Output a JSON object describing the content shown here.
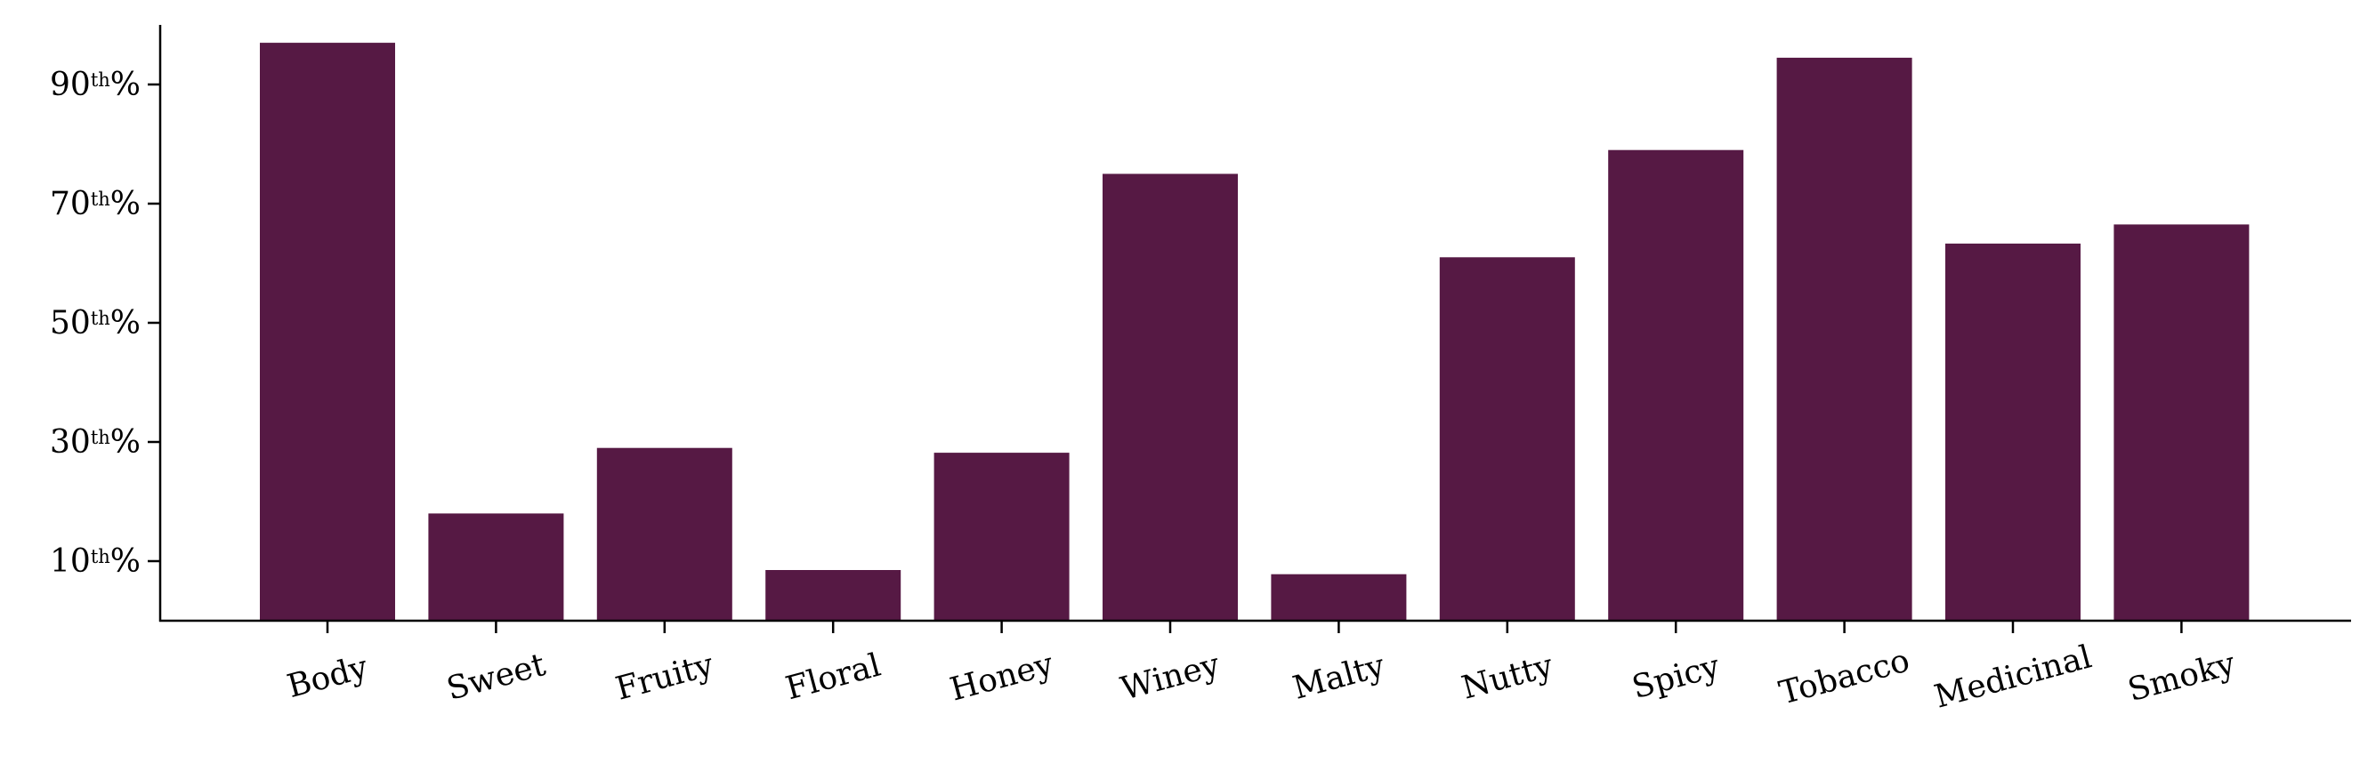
{
  "chart_data": {
    "type": "bar",
    "title": "",
    "xlabel": "",
    "ylabel": "",
    "categories": [
      "Body",
      "Sweet",
      "Fruity",
      "Floral",
      "Honey",
      "Winey",
      "Malty",
      "Nutty",
      "Spicy",
      "Tobacco",
      "Medicinal",
      "Smoky"
    ],
    "values": [
      97,
      18,
      29,
      8.5,
      28.2,
      75,
      7.8,
      61,
      79,
      94.5,
      63.3,
      66.5
    ],
    "ylim": [
      0,
      100
    ],
    "yticks": [
      {
        "value": 10,
        "num": "10",
        "sup": "th",
        "suffix": "%"
      },
      {
        "value": 30,
        "num": "30",
        "sup": "th",
        "suffix": "%"
      },
      {
        "value": 50,
        "num": "50",
        "sup": "th",
        "suffix": "%"
      },
      {
        "value": 70,
        "num": "70",
        "sup": "th",
        "suffix": "%"
      },
      {
        "value": 90,
        "num": "90",
        "sup": "th",
        "suffix": "%"
      }
    ],
    "grid": false,
    "bar_color": "#561944",
    "axis_color": "#000000"
  }
}
